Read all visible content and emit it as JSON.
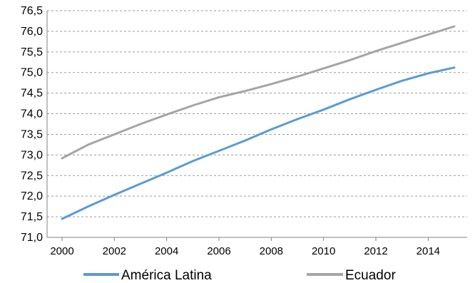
{
  "chart_data": {
    "type": "line",
    "title": "",
    "xlabel": "",
    "ylabel": "",
    "xlim": [
      2000,
      2015
    ],
    "ylim": [
      71.0,
      76.5
    ],
    "y_ticks": [
      71.0,
      71.5,
      72.0,
      72.5,
      73.0,
      73.5,
      74.0,
      74.5,
      75.0,
      75.5,
      76.0,
      76.5
    ],
    "y_tick_labels": [
      "71,0",
      "71,5",
      "72,0",
      "72,5",
      "73,0",
      "73,5",
      "74,0",
      "74,5",
      "75,0",
      "75,5",
      "76,0",
      "76,5"
    ],
    "x_ticks": [
      2000,
      2002,
      2004,
      2006,
      2008,
      2010,
      2012,
      2014
    ],
    "x_tick_labels": [
      "2000",
      "2002",
      "2004",
      "2006",
      "2008",
      "2010",
      "2012",
      "2014"
    ],
    "grid": "horizontal dashed",
    "legend_position": "bottom",
    "x": [
      2000,
      2001,
      2002,
      2003,
      2004,
      2005,
      2006,
      2007,
      2008,
      2009,
      2010,
      2011,
      2012,
      2013,
      2014,
      2015
    ],
    "series": [
      {
        "name": "América Latina",
        "color": "#5b9bd5",
        "values": [
          71.45,
          71.75,
          72.03,
          72.3,
          72.57,
          72.85,
          73.1,
          73.35,
          73.62,
          73.87,
          74.1,
          74.35,
          74.58,
          74.8,
          74.98,
          75.12
        ]
      },
      {
        "name": "Ecuador",
        "color": "#a5a5a5",
        "values": [
          72.92,
          73.25,
          73.5,
          73.75,
          73.98,
          74.2,
          74.4,
          74.55,
          74.72,
          74.9,
          75.1,
          75.3,
          75.52,
          75.72,
          75.92,
          76.12
        ]
      }
    ]
  }
}
